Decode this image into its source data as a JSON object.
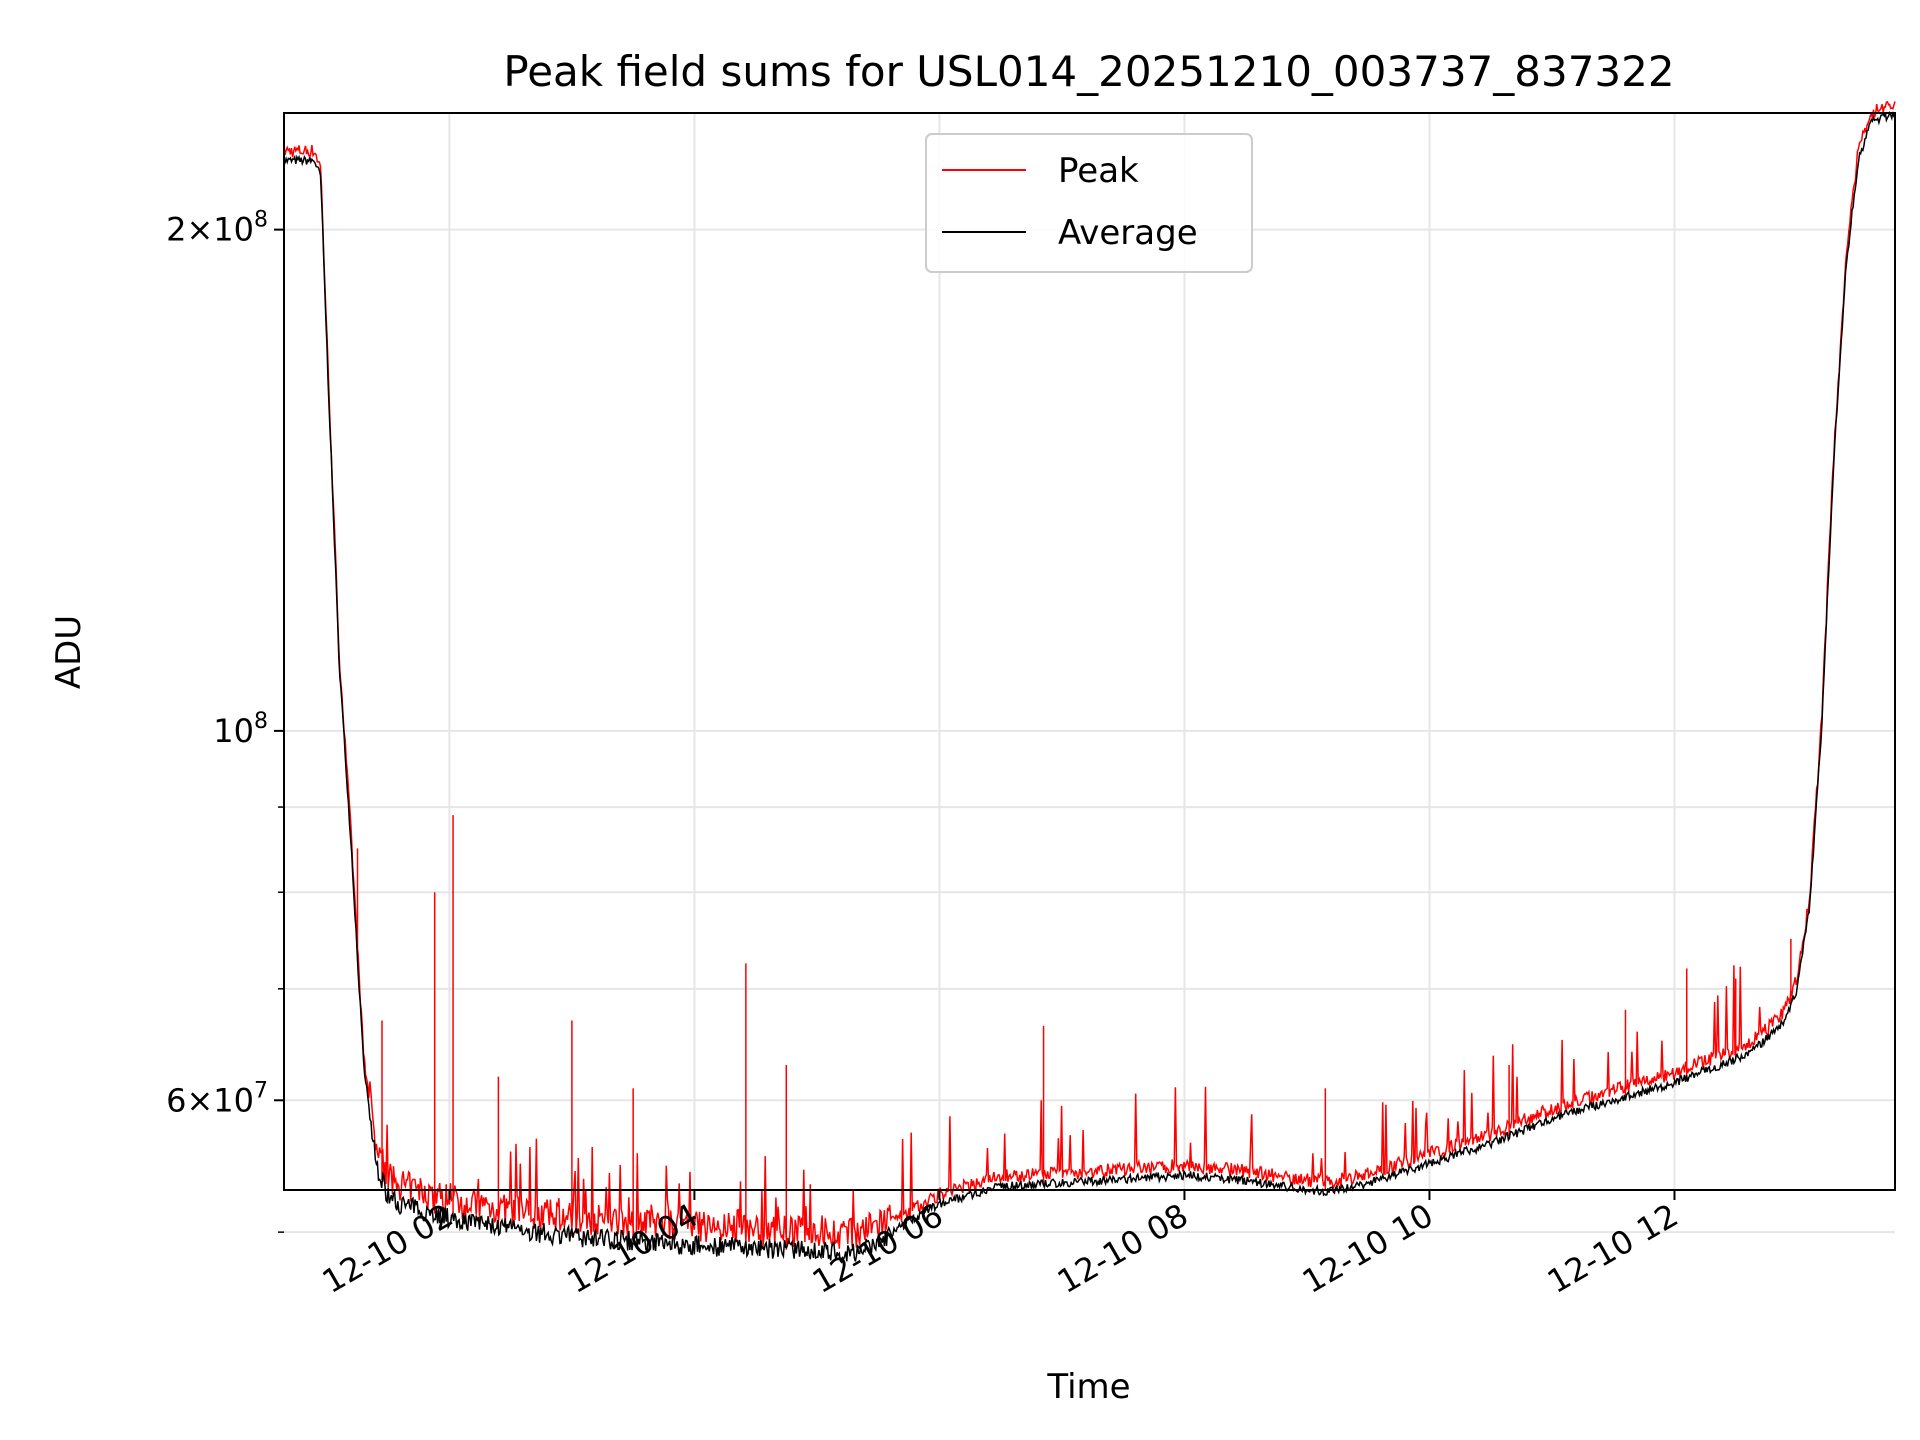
{
  "chart_data": {
    "type": "line",
    "title": "Peak field sums for USL014_20251210_003737_837322",
    "xlabel": "Time",
    "ylabel": "ADU",
    "yscale": "log",
    "xlim_hours": [
      0.65,
      13.8
    ],
    "ylim": [
      53000000,
      235000000
    ],
    "grid": true,
    "legend_position": "top-center",
    "x_ticks": [
      {
        "hour": 2,
        "label": "12-10 02"
      },
      {
        "hour": 4,
        "label": "12-10 04"
      },
      {
        "hour": 6,
        "label": "12-10 06"
      },
      {
        "hour": 8,
        "label": "12-10 08"
      },
      {
        "hour": 10,
        "label": "12-10 10"
      },
      {
        "hour": 12,
        "label": "12-10 12"
      }
    ],
    "y_ticks": [
      {
        "value": 60000000,
        "base": "6",
        "exp": "7",
        "mult": true
      },
      {
        "value": 100000000,
        "base": "10",
        "exp": "8",
        "mult": false
      },
      {
        "value": 200000000,
        "base": "2",
        "exp": "8",
        "mult": true
      }
    ],
    "y_minor_ticks": [
      50000000,
      70000000,
      80000000,
      90000000
    ],
    "series": [
      {
        "name": "Peak",
        "color": "#ff0000"
      },
      {
        "name": "Average",
        "color": "#000000"
      }
    ],
    "average_profile": {
      "hours": [
        0.65,
        0.9,
        0.95,
        1.0,
        1.1,
        1.2,
        1.25,
        1.3,
        1.4,
        1.5,
        1.6,
        1.8,
        2.0,
        2.5,
        3.0,
        3.5,
        4.0,
        4.5,
        5.0,
        5.3,
        5.5,
        5.7,
        6.0,
        6.5,
        7.0,
        7.5,
        8.0,
        8.5,
        9.0,
        9.2,
        9.5,
        10.0,
        10.5,
        11.0,
        11.5,
        12.0,
        12.5,
        12.7,
        12.9,
        13.0,
        13.1,
        13.2,
        13.3,
        13.4,
        13.5,
        13.6,
        13.8
      ],
      "values": [
        220000000,
        220000000,
        215000000,
        170000000,
        110000000,
        85000000,
        73000000,
        63000000,
        55000000,
        52500000,
        52000000,
        51500000,
        51000000,
        50200000,
        49700000,
        49400000,
        49100000,
        48900000,
        48700000,
        48600000,
        49200000,
        50500000,
        52000000,
        53300000,
        53500000,
        53800000,
        54100000,
        53700000,
        53000000,
        52900000,
        53500000,
        55000000,
        56500000,
        58500000,
        60000000,
        61500000,
        63500000,
        64800000,
        67000000,
        70000000,
        78000000,
        100000000,
        145000000,
        190000000,
        220000000,
        232000000,
        235000000
      ]
    },
    "peak_spikes": [
      {
        "hour": 1.25,
        "value": 85000000
      },
      {
        "hour": 1.45,
        "value": 67000000
      },
      {
        "hour": 1.88,
        "value": 80000000
      },
      {
        "hour": 2.03,
        "value": 89000000
      },
      {
        "hour": 2.4,
        "value": 62000000
      },
      {
        "hour": 3.0,
        "value": 67000000
      },
      {
        "hour": 3.5,
        "value": 61000000
      },
      {
        "hour": 4.42,
        "value": 72500000
      },
      {
        "hour": 4.75,
        "value": 63000000
      },
      {
        "hour": 6.85,
        "value": 66500000
      },
      {
        "hour": 9.15,
        "value": 61000000
      },
      {
        "hour": 10.65,
        "value": 63000000
      },
      {
        "hour": 11.6,
        "value": 68000000
      },
      {
        "hour": 12.1,
        "value": 72000000
      },
      {
        "hour": 12.5,
        "value": 71000000
      },
      {
        "hour": 12.95,
        "value": 75000000
      }
    ]
  }
}
